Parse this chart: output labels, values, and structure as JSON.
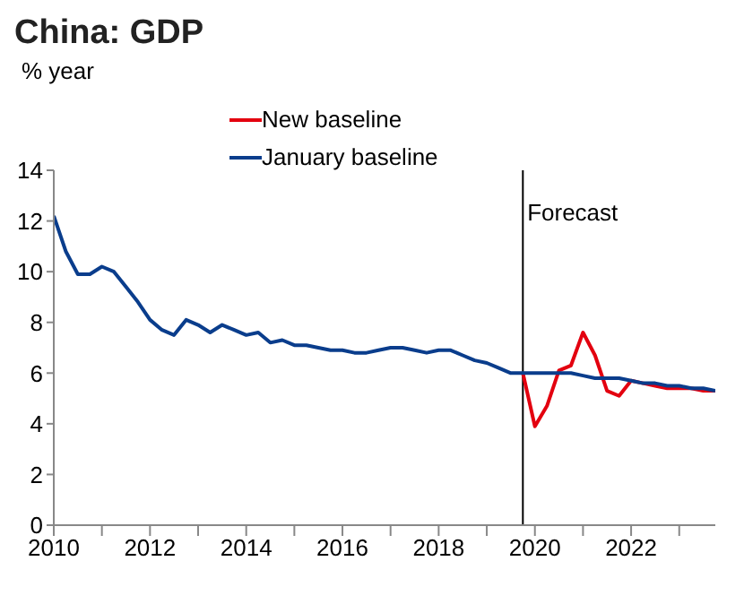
{
  "chart_data": {
    "type": "line",
    "title": "China: GDP",
    "ylabel": "% year",
    "xlim": [
      2010,
      2023.75
    ],
    "ylim": [
      0,
      14
    ],
    "yticks": [
      0,
      2,
      4,
      6,
      8,
      10,
      12,
      14
    ],
    "xticks": [
      2010,
      {
        "value": 2011,
        "label": null
      },
      2012,
      {
        "value": 2013,
        "label": null
      },
      2014,
      {
        "value": 2015,
        "label": null
      },
      2016,
      {
        "value": 2017,
        "label": null
      },
      2018,
      {
        "value": 2019,
        "label": null
      },
      2020,
      {
        "value": 2021,
        "label": null
      },
      2022,
      {
        "value": 2023,
        "label": null
      }
    ],
    "grid": false,
    "legend": "top",
    "marker": "none",
    "line_style": "solid",
    "ref_lines": [
      {
        "axis": "x",
        "value": 2019.75,
        "label": "Forecast",
        "color": "#000000"
      }
    ],
    "series": [
      {
        "name": "New baseline",
        "color": "#e3000f",
        "x": [
          2019.75,
          2020,
          2020.25,
          2020.5,
          2020.75,
          2021,
          2021.25,
          2021.5,
          2021.75,
          2022,
          2022.25,
          2022.5,
          2022.75,
          2023,
          2023.25,
          2023.5,
          2023.75
        ],
        "values": [
          6.0,
          3.9,
          4.7,
          6.1,
          6.3,
          7.6,
          6.7,
          5.3,
          5.1,
          5.7,
          5.6,
          5.5,
          5.4,
          5.4,
          5.4,
          5.3,
          5.3
        ]
      },
      {
        "name": "January baseline",
        "color": "#0a3d8c",
        "x": [
          2010,
          2010.25,
          2010.5,
          2010.75,
          2011,
          2011.25,
          2011.5,
          2011.75,
          2012,
          2012.25,
          2012.5,
          2012.75,
          2013,
          2013.25,
          2013.5,
          2013.75,
          2014,
          2014.25,
          2014.5,
          2014.75,
          2015,
          2015.25,
          2015.5,
          2015.75,
          2016,
          2016.25,
          2016.5,
          2016.75,
          2017,
          2017.25,
          2017.5,
          2017.75,
          2018,
          2018.25,
          2018.5,
          2018.75,
          2019,
          2019.25,
          2019.5,
          2019.75,
          2020,
          2020.25,
          2020.5,
          2020.75,
          2021,
          2021.25,
          2021.5,
          2021.75,
          2022,
          2022.25,
          2022.5,
          2022.75,
          2023,
          2023.25,
          2023.5,
          2023.75
        ],
        "values": [
          12.2,
          10.8,
          9.9,
          9.9,
          10.2,
          10.0,
          9.4,
          8.8,
          8.1,
          7.7,
          7.5,
          8.1,
          7.9,
          7.6,
          7.9,
          7.7,
          7.5,
          7.6,
          7.2,
          7.3,
          7.1,
          7.1,
          7.0,
          6.9,
          6.9,
          6.8,
          6.8,
          6.9,
          7.0,
          7.0,
          6.9,
          6.8,
          6.9,
          6.9,
          6.7,
          6.5,
          6.4,
          6.2,
          6.0,
          6.0,
          6.0,
          6.0,
          6.0,
          6.0,
          5.9,
          5.8,
          5.8,
          5.8,
          5.7,
          5.6,
          5.6,
          5.5,
          5.5,
          5.4,
          5.4,
          5.3
        ]
      }
    ]
  }
}
